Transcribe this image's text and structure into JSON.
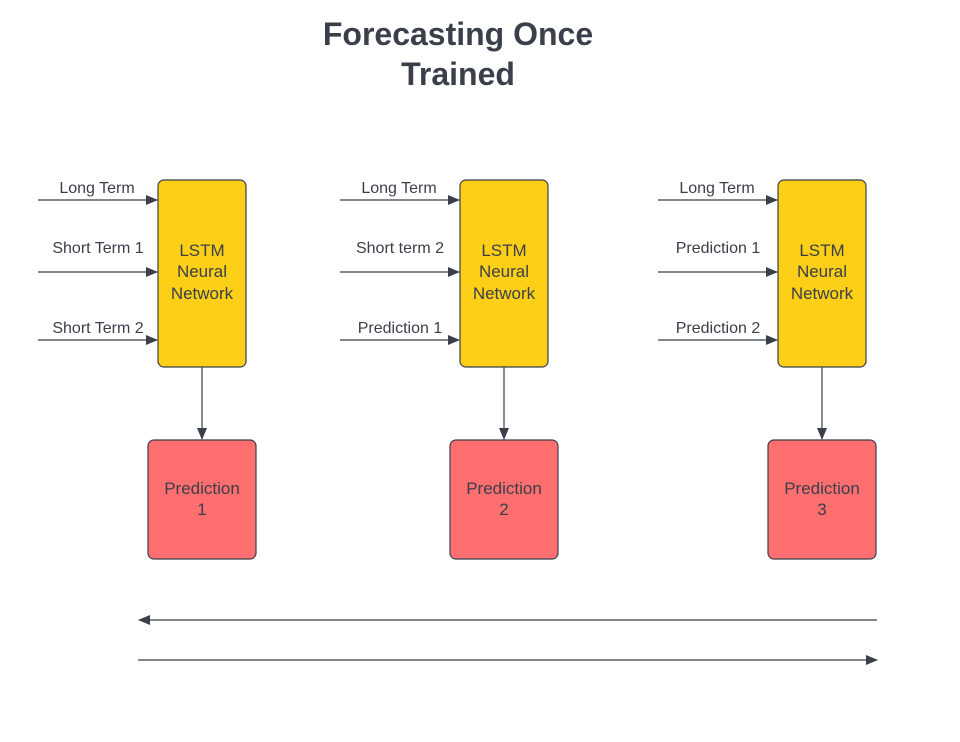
{
  "title": {
    "line1": "Forecasting Once",
    "line2": "Trained"
  },
  "colors": {
    "lstm_fill": "#fdcf16",
    "prediction_fill": "#ff6f6f",
    "stroke": "#3a3f4a"
  },
  "stages": [
    {
      "inputs": [
        "Long Term",
        "Short Term 1",
        "Short Term 2"
      ],
      "model": [
        "LSTM",
        "Neural",
        "Network"
      ],
      "output": [
        "Prediction",
        "1"
      ]
    },
    {
      "inputs": [
        "Long Term",
        "Short term 2",
        "Prediction 1"
      ],
      "model": [
        "LSTM",
        "Neural",
        "Network"
      ],
      "output": [
        "Prediction",
        "2"
      ]
    },
    {
      "inputs": [
        "Long Term",
        "Prediction 1",
        "Prediction 2"
      ],
      "model": [
        "LSTM",
        "Neural",
        "Network"
      ],
      "output": [
        "Prediction",
        "3"
      ]
    }
  ]
}
